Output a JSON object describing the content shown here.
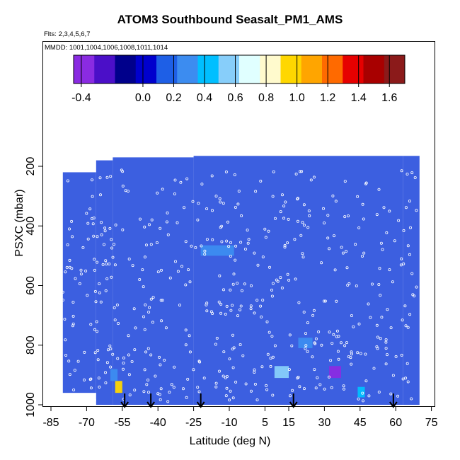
{
  "title": "ATOM3 Southbound Seasalt_PM1_AMS",
  "flights_note": "Flts: 2,3,4,5,6,7",
  "dates_note": "MMDD: 1001,1004,1006,1008,1011,1014",
  "colorbar": {
    "colors": [
      "#8a2be2",
      "#4b0fc8",
      "#00008b",
      "#0000cd",
      "#1e5fe6",
      "#3c8cf0",
      "#00bfff",
      "#87cefa",
      "#e0ffff",
      "#fffacd",
      "#ffd700",
      "#ffa500",
      "#ff6a00",
      "#e60000",
      "#a80000",
      "#8b1a1a"
    ],
    "ticks": [
      "-0.4",
      "0.0",
      "0.2",
      "0.4",
      "0.6",
      "0.8",
      "1.0",
      "1.2",
      "1.4",
      "1.6"
    ]
  },
  "chart_data": {
    "type": "heatmap",
    "title": "ATOM3 Southbound Seasalt_PM1_AMS",
    "xlabel": "Latitude (deg N)",
    "ylabel": "PSXC (mbar)",
    "x_ticks": [
      -85,
      -70,
      -55,
      -40,
      -25,
      -10,
      5,
      15,
      30,
      45,
      60,
      75
    ],
    "y_ticks": [
      200,
      400,
      600,
      800,
      1000
    ],
    "xlim": [
      -85,
      75
    ],
    "ylim": [
      1000,
      120
    ],
    "y_reversed": true,
    "colorbar_range": [
      -0.45,
      1.7
    ],
    "background_value": 0.1,
    "features": [
      {
        "lat_range": [
          -58,
          -55
        ],
        "p_range": [
          920,
          960
        ],
        "value": 1.0
      },
      {
        "lat_range": [
          -60,
          -57
        ],
        "p_range": [
          880,
          920
        ],
        "value": 0.35
      },
      {
        "lat_range": [
          9,
          15
        ],
        "p_range": [
          870,
          910
        ],
        "value": 0.5
      },
      {
        "lat_range": [
          32,
          37
        ],
        "p_range": [
          870,
          910
        ],
        "value": -0.4
      },
      {
        "lat_range": [
          -22,
          -8
        ],
        "p_range": [
          465,
          500
        ],
        "value": 0.3
      },
      {
        "lat_range": [
          19,
          25
        ],
        "p_range": [
          775,
          810
        ],
        "value": 0.3
      },
      {
        "lat_range": [
          44,
          47
        ],
        "p_range": [
          940,
          975
        ],
        "value": 0.4
      }
    ],
    "arrow_latitudes": [
      -54,
      -43,
      -22,
      17,
      59
    ]
  }
}
